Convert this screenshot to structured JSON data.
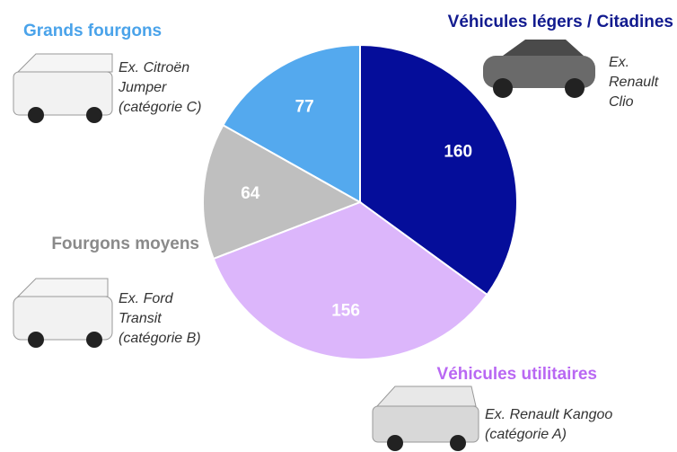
{
  "chart_data": {
    "type": "pie",
    "categories": [
      "Véhicules légers / Citadines",
      "Véhicules utilitaires",
      "Fourgons moyens",
      "Grands fourgons"
    ],
    "values": [
      160,
      156,
      64,
      77
    ],
    "colors": [
      "#050d9a",
      "#dcb6fb",
      "#bfbfbf",
      "#54a9ee"
    ],
    "label_colors": [
      "#121b8f",
      "#b968f3",
      "#8a8a8a",
      "#4aa3ea"
    ],
    "annotations": [
      [
        "Ex.",
        "Renault",
        "Clio"
      ],
      [
        "Ex. Renault Kangoo",
        "(catégorie A)"
      ],
      [
        "Ex. Ford",
        "Transit",
        "(catégorie B)"
      ],
      [
        "Ex. Citroën",
        "Jumper",
        "(catégorie C)"
      ]
    ]
  }
}
